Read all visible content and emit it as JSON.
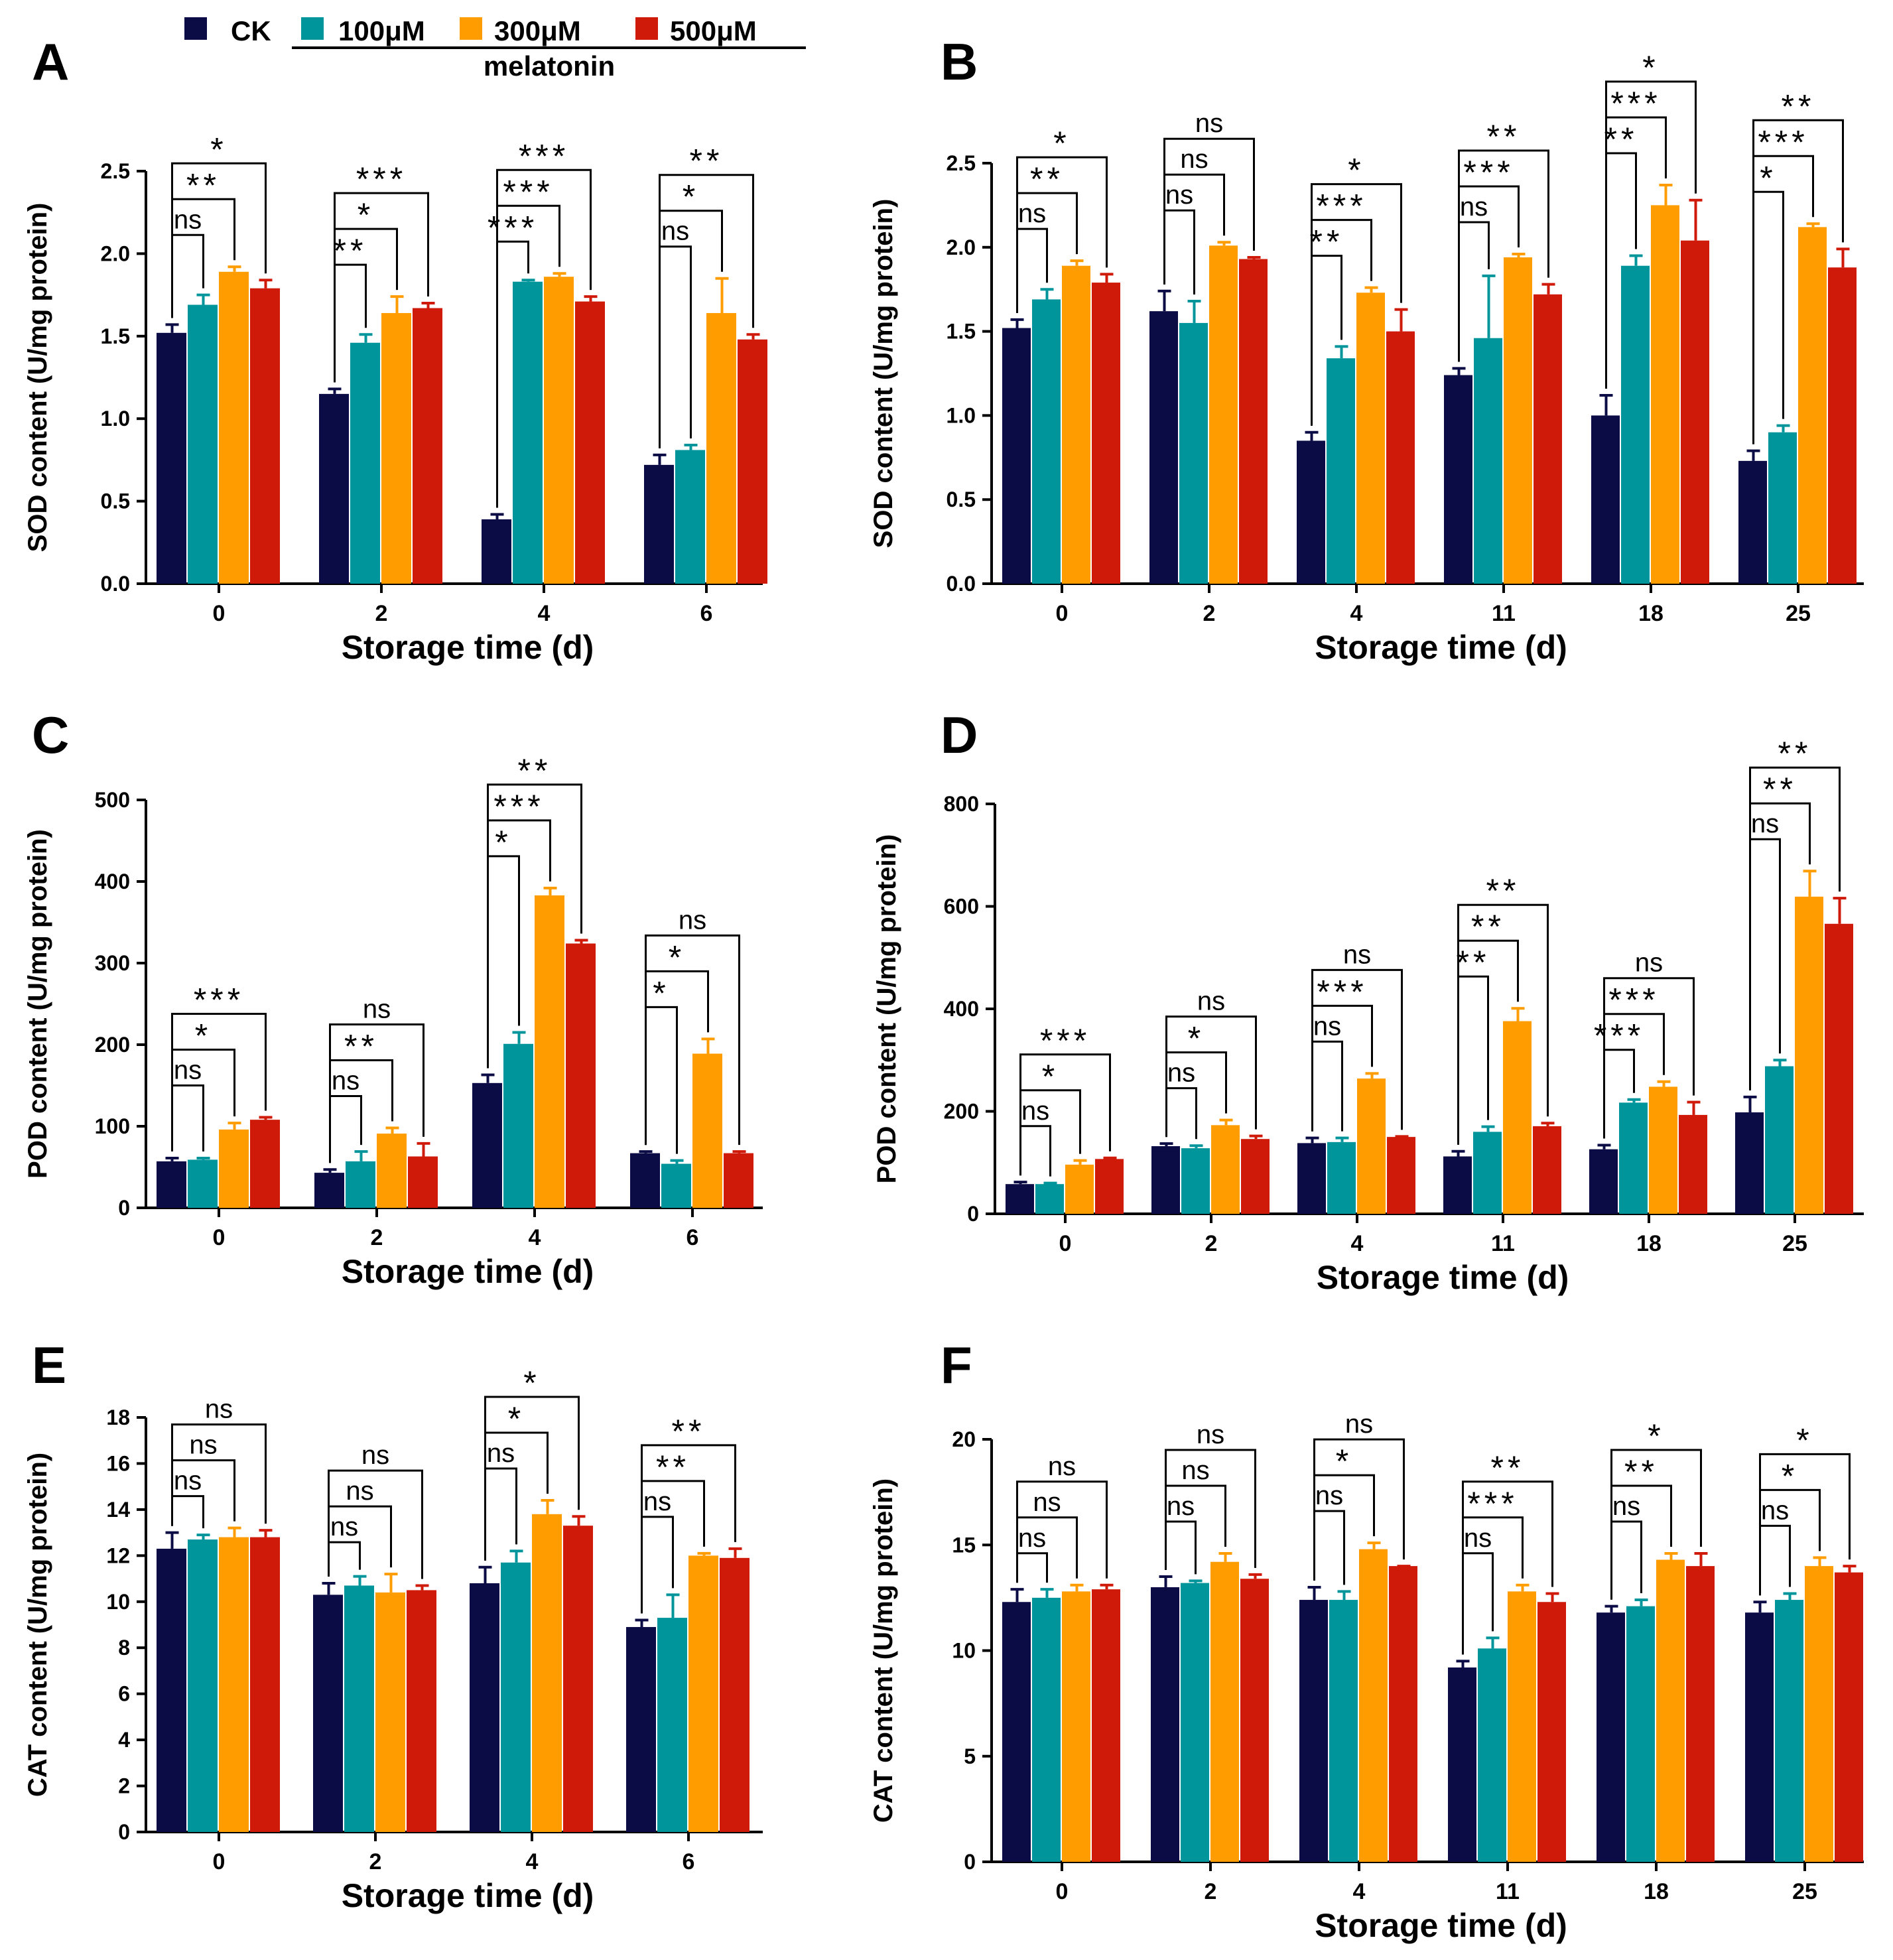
{
  "figure": {
    "legend": {
      "entries": [
        {
          "label": "CK",
          "color": "#0b0b45"
        },
        {
          "label": "100μM",
          "color": "#00959b"
        },
        {
          "label": "300μM",
          "color": "#ff9c00"
        },
        {
          "label": "500μM",
          "color": "#cf1a0a"
        }
      ],
      "group_label": "melatonin"
    }
  },
  "chart_data": [
    {
      "panel": "A",
      "type": "bar",
      "ylabel": "SOD content (U/mg protein)",
      "xlabel": "Storage time (d)",
      "ylim": [
        0,
        2.5
      ],
      "yticks": [
        0.0,
        0.5,
        1.0,
        1.5,
        2.0,
        2.5
      ],
      "ytick_decimals": 1,
      "categories": [
        "0",
        "2",
        "4",
        "6"
      ],
      "series": [
        {
          "name": "CK",
          "values": [
            1.52,
            1.15,
            0.39,
            0.72
          ],
          "errors": [
            0.05,
            0.03,
            0.03,
            0.06
          ]
        },
        {
          "name": "100μM",
          "values": [
            1.69,
            1.46,
            1.83,
            0.81
          ],
          "errors": [
            0.06,
            0.05,
            0.01,
            0.03
          ]
        },
        {
          "name": "300μM",
          "values": [
            1.89,
            1.64,
            1.86,
            1.64
          ],
          "errors": [
            0.03,
            0.1,
            0.02,
            0.21
          ]
        },
        {
          "name": "500μM",
          "values": [
            1.79,
            1.67,
            1.71,
            1.48
          ],
          "errors": [
            0.05,
            0.03,
            0.03,
            0.03
          ]
        }
      ],
      "significance": [
        [
          "ns",
          "**",
          "*"
        ],
        [
          "**",
          "*",
          "***"
        ],
        [
          "***",
          "***",
          "***"
        ],
        [
          "ns",
          "*",
          "**"
        ]
      ]
    },
    {
      "panel": "B",
      "type": "bar",
      "ylabel": "SOD content (U/mg protein)",
      "xlabel": "Storage time (d)",
      "ylim": [
        0,
        2.5
      ],
      "yticks": [
        0.0,
        0.5,
        1.0,
        1.5,
        2.0,
        2.5
      ],
      "ytick_decimals": 1,
      "categories": [
        "0",
        "2",
        "4",
        "11",
        "18",
        "25"
      ],
      "series": [
        {
          "name": "CK",
          "values": [
            1.52,
            1.62,
            0.85,
            1.24,
            1.0,
            0.73
          ],
          "errors": [
            0.05,
            0.12,
            0.05,
            0.04,
            0.12,
            0.06
          ]
        },
        {
          "name": "100μM",
          "values": [
            1.69,
            1.55,
            1.34,
            1.46,
            1.89,
            0.9
          ],
          "errors": [
            0.06,
            0.13,
            0.07,
            0.37,
            0.06,
            0.04
          ]
        },
        {
          "name": "300μM",
          "values": [
            1.89,
            2.01,
            1.73,
            1.94,
            2.25,
            2.12
          ],
          "errors": [
            0.03,
            0.02,
            0.03,
            0.02,
            0.12,
            0.02
          ]
        },
        {
          "name": "500μM",
          "values": [
            1.79,
            1.93,
            1.5,
            1.72,
            2.04,
            1.88
          ],
          "errors": [
            0.05,
            0.01,
            0.13,
            0.06,
            0.24,
            0.11
          ]
        }
      ],
      "significance": [
        [
          "ns",
          "**",
          "*"
        ],
        [
          "ns",
          "ns",
          "ns"
        ],
        [
          "**",
          "***",
          "*"
        ],
        [
          "ns",
          "***",
          "**"
        ],
        [
          "**",
          "***",
          "*"
        ],
        [
          "*",
          "***",
          "**"
        ]
      ]
    },
    {
      "panel": "C",
      "type": "bar",
      "ylabel": "POD content (U/mg protein)",
      "xlabel": "Storage time (d)",
      "ylim": [
        0,
        500
      ],
      "yticks": [
        0,
        100,
        200,
        300,
        400,
        500
      ],
      "ytick_decimals": 0,
      "categories": [
        "0",
        "2",
        "4",
        "6"
      ],
      "series": [
        {
          "name": "CK",
          "values": [
            57,
            43,
            153,
            67
          ],
          "errors": [
            4,
            4,
            10,
            2
          ]
        },
        {
          "name": "100μM",
          "values": [
            59,
            57,
            201,
            54
          ],
          "errors": [
            2,
            12,
            14,
            4
          ]
        },
        {
          "name": "300μM",
          "values": [
            96,
            91,
            383,
            189
          ],
          "errors": [
            8,
            7,
            9,
            18
          ]
        },
        {
          "name": "500μM",
          "values": [
            108,
            63,
            324,
            67
          ],
          "errors": [
            3,
            16,
            4,
            2
          ]
        }
      ],
      "significance": [
        [
          "ns",
          "*",
          "***"
        ],
        [
          "ns",
          "**",
          "ns"
        ],
        [
          "*",
          "***",
          "**"
        ],
        [
          "*",
          "*",
          "ns"
        ]
      ]
    },
    {
      "panel": "D",
      "type": "bar",
      "ylabel": "POD content (U/mg protein)",
      "xlabel": "Storage time (d)",
      "ylim": [
        0,
        800
      ],
      "yticks": [
        0,
        200,
        400,
        600,
        800
      ],
      "ytick_decimals": 0,
      "categories": [
        "0",
        "2",
        "4",
        "11",
        "18",
        "25"
      ],
      "series": [
        {
          "name": "CK",
          "values": [
            58,
            132,
            138,
            112,
            126,
            198
          ],
          "errors": [
            4,
            5,
            10,
            10,
            8,
            30
          ]
        },
        {
          "name": "100μM",
          "values": [
            58,
            128,
            140,
            160,
            217,
            288
          ],
          "errors": [
            2,
            5,
            8,
            10,
            6,
            12
          ]
        },
        {
          "name": "300μM",
          "values": [
            96,
            173,
            264,
            376,
            248,
            619
          ],
          "errors": [
            8,
            10,
            10,
            25,
            10,
            50
          ]
        },
        {
          "name": "500μM",
          "values": [
            107,
            146,
            150,
            171,
            193,
            566
          ],
          "errors": [
            2,
            6,
            1,
            6,
            25,
            50
          ]
        }
      ],
      "significance": [
        [
          "ns",
          "*",
          "***"
        ],
        [
          "ns",
          "*",
          "ns"
        ],
        [
          "ns",
          "***",
          "ns"
        ],
        [
          "**",
          "**",
          "**"
        ],
        [
          "***",
          "***",
          "ns"
        ],
        [
          "ns",
          "**",
          "**"
        ]
      ]
    },
    {
      "panel": "E",
      "type": "bar",
      "ylabel": "CAT content (U/mg protein)",
      "xlabel": "Storage time (d)",
      "ylim": [
        0,
        18
      ],
      "yticks": [
        0,
        2,
        4,
        6,
        8,
        10,
        12,
        14,
        16,
        18
      ],
      "ytick_decimals": 0,
      "categories": [
        "0",
        "2",
        "4",
        "6"
      ],
      "series": [
        {
          "name": "CK",
          "values": [
            12.3,
            10.3,
            10.8,
            8.9
          ],
          "errors": [
            0.7,
            0.5,
            0.7,
            0.3
          ]
        },
        {
          "name": "100μM",
          "values": [
            12.7,
            10.7,
            11.7,
            9.3
          ],
          "errors": [
            0.2,
            0.4,
            0.5,
            1.0
          ]
        },
        {
          "name": "300μM",
          "values": [
            12.8,
            10.4,
            13.8,
            12.0
          ],
          "errors": [
            0.4,
            0.8,
            0.6,
            0.1
          ]
        },
        {
          "name": "500μM",
          "values": [
            12.8,
            10.5,
            13.3,
            11.9
          ],
          "errors": [
            0.3,
            0.2,
            0.4,
            0.4
          ]
        }
      ],
      "significance": [
        [
          "ns",
          "ns",
          "ns"
        ],
        [
          "ns",
          "ns",
          "ns"
        ],
        [
          "ns",
          "*",
          "*"
        ],
        [
          "ns",
          "**",
          "**"
        ]
      ]
    },
    {
      "panel": "F",
      "type": "bar",
      "ylabel": "CAT content (U/mg protein)",
      "xlabel": "Storage time (d)",
      "ylim": [
        0,
        20
      ],
      "yticks": [
        0,
        5,
        10,
        15,
        20
      ],
      "ytick_decimals": 0,
      "categories": [
        "0",
        "2",
        "4",
        "11",
        "18",
        "25"
      ],
      "series": [
        {
          "name": "CK",
          "values": [
            12.3,
            13.0,
            12.4,
            9.2,
            11.8,
            11.8
          ],
          "errors": [
            0.6,
            0.5,
            0.6,
            0.3,
            0.3,
            0.5
          ]
        },
        {
          "name": "100μM",
          "values": [
            12.5,
            13.2,
            12.4,
            10.1,
            12.1,
            12.4
          ],
          "errors": [
            0.4,
            0.1,
            0.4,
            0.5,
            0.3,
            0.3
          ]
        },
        {
          "name": "300μM",
          "values": [
            12.8,
            14.2,
            14.8,
            12.8,
            14.3,
            14.0
          ],
          "errors": [
            0.3,
            0.4,
            0.3,
            0.3,
            0.3,
            0.4
          ]
        },
        {
          "name": "500μM",
          "values": [
            12.9,
            13.4,
            14.0,
            12.3,
            14.0,
            13.7
          ],
          "errors": [
            0.2,
            0.2,
            0.0,
            0.4,
            0.6,
            0.3
          ]
        }
      ],
      "significance": [
        [
          "ns",
          "ns",
          "ns"
        ],
        [
          "ns",
          "ns",
          "ns"
        ],
        [
          "ns",
          "*",
          "ns"
        ],
        [
          "ns",
          "***",
          "**"
        ],
        [
          "ns",
          "**",
          "*"
        ],
        [
          "ns",
          "*",
          "*"
        ]
      ]
    }
  ]
}
